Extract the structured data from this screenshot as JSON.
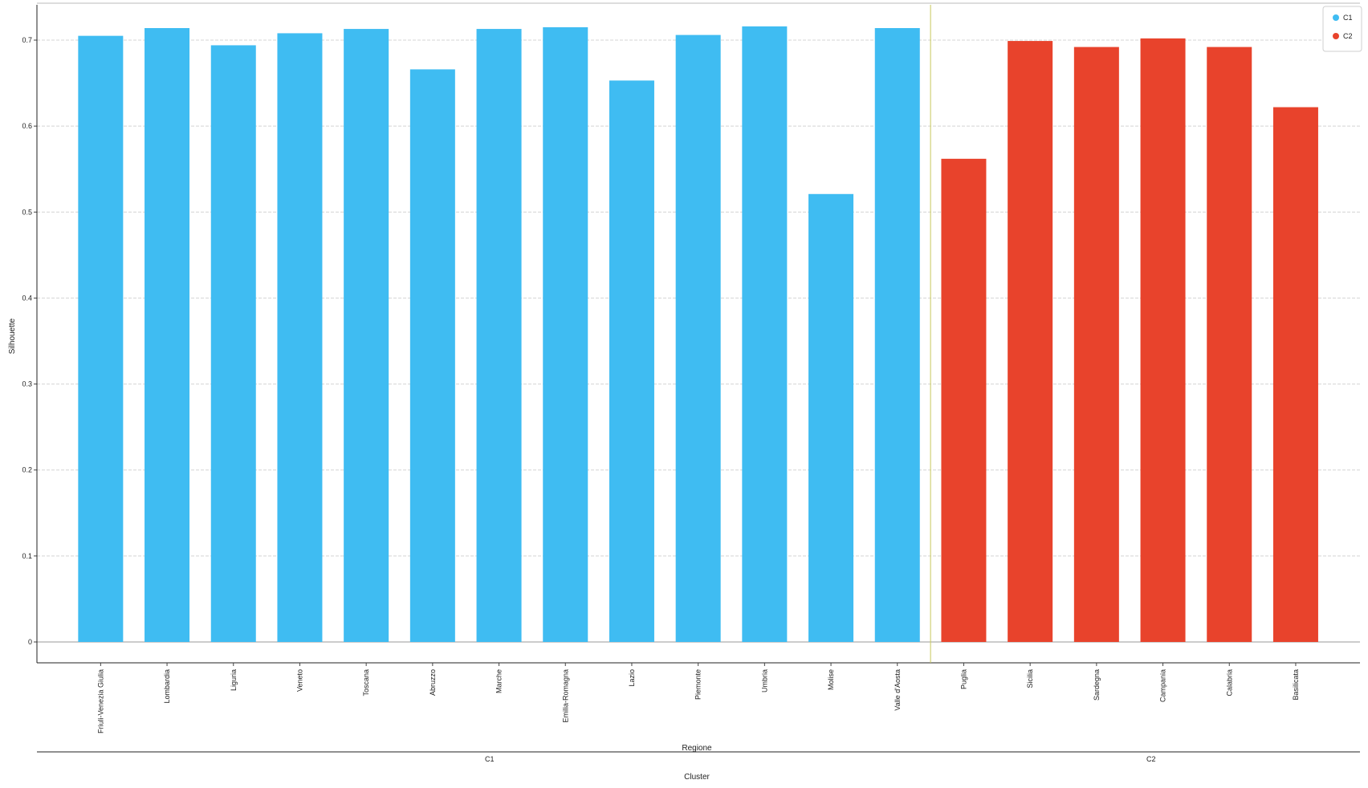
{
  "chart_data": {
    "type": "bar",
    "xlabel": "Regione",
    "ylabel": "Silhouette",
    "group_axis_label": "Cluster",
    "ylim": [
      0,
      0.72
    ],
    "yticks": [
      0,
      0.1,
      0.2,
      0.3,
      0.4,
      0.5,
      0.6,
      0.7
    ],
    "ytick_labels": [
      "0",
      "0.1",
      "0.2",
      "0.3",
      "0.4",
      "0.5",
      "0.6",
      "0.7"
    ],
    "grid": true,
    "legend_position": "top-right",
    "groups": [
      {
        "name": "C1",
        "color": "#3fbcf2",
        "categories": [
          "Friuli-Venezia Giulia",
          "Lombardia",
          "Liguria",
          "Veneto",
          "Toscana",
          "Abruzzo",
          "Marche",
          "Emilia-Romagna",
          "Lazio",
          "Piemonte",
          "Umbria",
          "Molise",
          "Valle d'Aosta"
        ],
        "values": [
          0.705,
          0.714,
          0.694,
          0.708,
          0.713,
          0.666,
          0.713,
          0.715,
          0.653,
          0.706,
          0.716,
          0.521,
          0.714
        ]
      },
      {
        "name": "C2",
        "color": "#e8432c",
        "categories": [
          "Puglia",
          "Sicilia",
          "Sardegna",
          "Campania",
          "Calabria",
          "Basilicata"
        ],
        "values": [
          0.562,
          0.699,
          0.692,
          0.702,
          0.692,
          0.622
        ]
      }
    ]
  }
}
